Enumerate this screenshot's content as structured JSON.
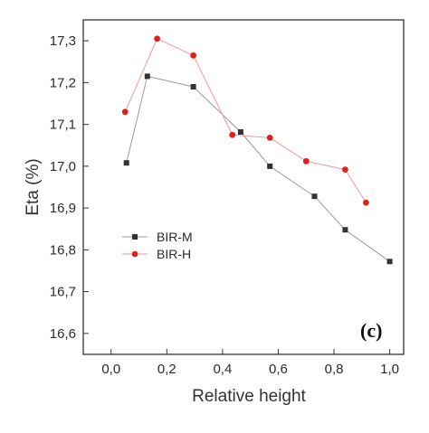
{
  "chart_data": {
    "type": "line",
    "xlabel": "Relative height",
    "ylabel": "Eta (%)",
    "xlim": [
      -0.1,
      1.05
    ],
    "ylim": [
      16.55,
      17.35
    ],
    "x_ticks": [
      "0,0",
      "0,2",
      "0,4",
      "0,6",
      "0,8",
      "1,0"
    ],
    "x_tick_values": [
      0.0,
      0.2,
      0.4,
      0.6,
      0.8,
      1.0
    ],
    "y_ticks": [
      "16,6",
      "16,7",
      "16,8",
      "16,9",
      "17,0",
      "17,1",
      "17,2",
      "17,3"
    ],
    "y_tick_values": [
      16.6,
      16.7,
      16.8,
      16.9,
      17.0,
      17.1,
      17.2,
      17.3
    ],
    "grid": false,
    "legend_position": "center-left",
    "panel_label": "(c)",
    "series": [
      {
        "name": "BIR-M",
        "color": "#333333",
        "marker": "square",
        "x": [
          0.055,
          0.13,
          0.295,
          0.465,
          0.57,
          0.73,
          0.84,
          1.0
        ],
        "y": [
          17.008,
          17.215,
          17.19,
          17.082,
          17.0,
          16.928,
          16.848,
          16.772
        ]
      },
      {
        "name": "BIR-H",
        "color": "#e0201b",
        "marker": "circle",
        "x": [
          0.05,
          0.165,
          0.295,
          0.435,
          0.57,
          0.7,
          0.84,
          0.915
        ],
        "y": [
          17.13,
          17.305,
          17.265,
          17.075,
          17.068,
          17.012,
          16.992,
          16.913
        ]
      }
    ]
  }
}
